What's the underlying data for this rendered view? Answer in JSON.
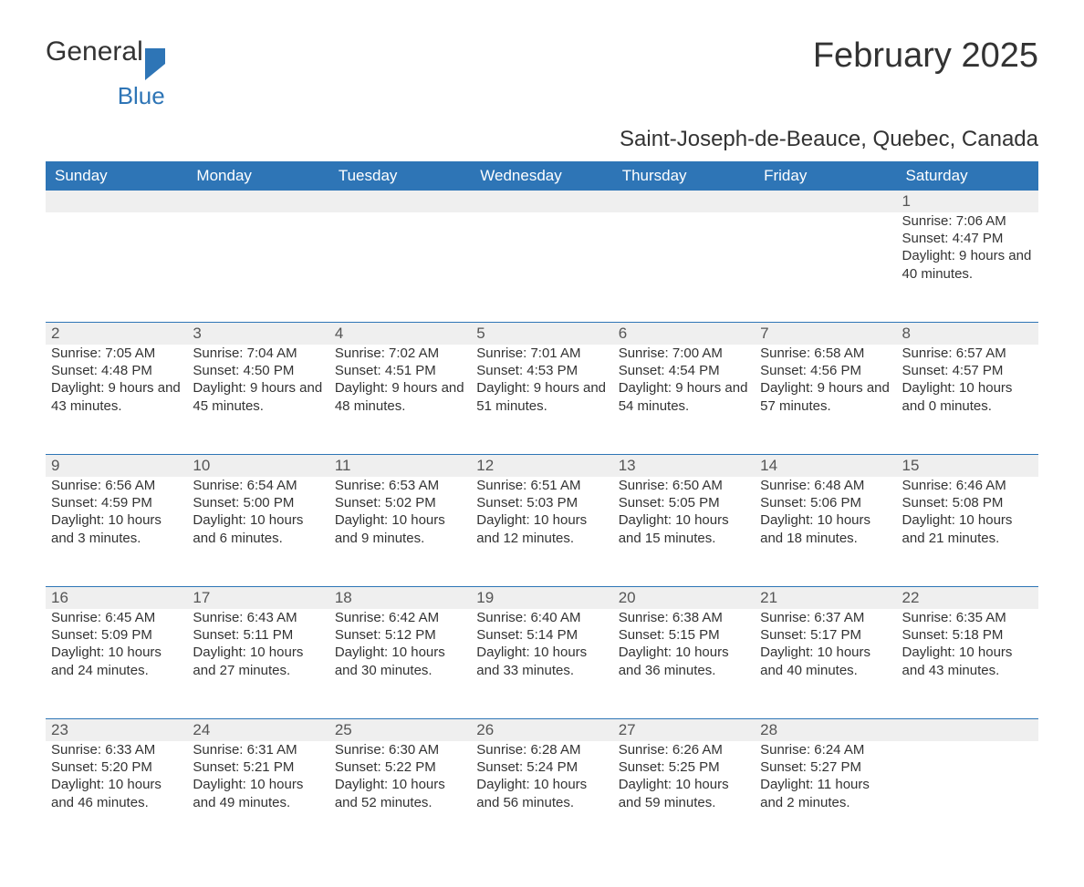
{
  "logo": {
    "text1": "General",
    "text2": "Blue"
  },
  "title": "February 2025",
  "location": "Saint-Joseph-de-Beauce, Quebec, Canada",
  "colors": {
    "header_bg": "#2e75b6",
    "header_text": "#ffffff",
    "daynum_bg": "#efefef",
    "text": "#333333",
    "rule": "#2e75b6"
  },
  "day_names": [
    "Sunday",
    "Monday",
    "Tuesday",
    "Wednesday",
    "Thursday",
    "Friday",
    "Saturday"
  ],
  "weeks": [
    [
      null,
      null,
      null,
      null,
      null,
      null,
      {
        "n": "1",
        "sunrise": "Sunrise: 7:06 AM",
        "sunset": "Sunset: 4:47 PM",
        "daylight": "Daylight: 9 hours and 40 minutes."
      }
    ],
    [
      {
        "n": "2",
        "sunrise": "Sunrise: 7:05 AM",
        "sunset": "Sunset: 4:48 PM",
        "daylight": "Daylight: 9 hours and 43 minutes."
      },
      {
        "n": "3",
        "sunrise": "Sunrise: 7:04 AM",
        "sunset": "Sunset: 4:50 PM",
        "daylight": "Daylight: 9 hours and 45 minutes."
      },
      {
        "n": "4",
        "sunrise": "Sunrise: 7:02 AM",
        "sunset": "Sunset: 4:51 PM",
        "daylight": "Daylight: 9 hours and 48 minutes."
      },
      {
        "n": "5",
        "sunrise": "Sunrise: 7:01 AM",
        "sunset": "Sunset: 4:53 PM",
        "daylight": "Daylight: 9 hours and 51 minutes."
      },
      {
        "n": "6",
        "sunrise": "Sunrise: 7:00 AM",
        "sunset": "Sunset: 4:54 PM",
        "daylight": "Daylight: 9 hours and 54 minutes."
      },
      {
        "n": "7",
        "sunrise": "Sunrise: 6:58 AM",
        "sunset": "Sunset: 4:56 PM",
        "daylight": "Daylight: 9 hours and 57 minutes."
      },
      {
        "n": "8",
        "sunrise": "Sunrise: 6:57 AM",
        "sunset": "Sunset: 4:57 PM",
        "daylight": "Daylight: 10 hours and 0 minutes."
      }
    ],
    [
      {
        "n": "9",
        "sunrise": "Sunrise: 6:56 AM",
        "sunset": "Sunset: 4:59 PM",
        "daylight": "Daylight: 10 hours and 3 minutes."
      },
      {
        "n": "10",
        "sunrise": "Sunrise: 6:54 AM",
        "sunset": "Sunset: 5:00 PM",
        "daylight": "Daylight: 10 hours and 6 minutes."
      },
      {
        "n": "11",
        "sunrise": "Sunrise: 6:53 AM",
        "sunset": "Sunset: 5:02 PM",
        "daylight": "Daylight: 10 hours and 9 minutes."
      },
      {
        "n": "12",
        "sunrise": "Sunrise: 6:51 AM",
        "sunset": "Sunset: 5:03 PM",
        "daylight": "Daylight: 10 hours and 12 minutes."
      },
      {
        "n": "13",
        "sunrise": "Sunrise: 6:50 AM",
        "sunset": "Sunset: 5:05 PM",
        "daylight": "Daylight: 10 hours and 15 minutes."
      },
      {
        "n": "14",
        "sunrise": "Sunrise: 6:48 AM",
        "sunset": "Sunset: 5:06 PM",
        "daylight": "Daylight: 10 hours and 18 minutes."
      },
      {
        "n": "15",
        "sunrise": "Sunrise: 6:46 AM",
        "sunset": "Sunset: 5:08 PM",
        "daylight": "Daylight: 10 hours and 21 minutes."
      }
    ],
    [
      {
        "n": "16",
        "sunrise": "Sunrise: 6:45 AM",
        "sunset": "Sunset: 5:09 PM",
        "daylight": "Daylight: 10 hours and 24 minutes."
      },
      {
        "n": "17",
        "sunrise": "Sunrise: 6:43 AM",
        "sunset": "Sunset: 5:11 PM",
        "daylight": "Daylight: 10 hours and 27 minutes."
      },
      {
        "n": "18",
        "sunrise": "Sunrise: 6:42 AM",
        "sunset": "Sunset: 5:12 PM",
        "daylight": "Daylight: 10 hours and 30 minutes."
      },
      {
        "n": "19",
        "sunrise": "Sunrise: 6:40 AM",
        "sunset": "Sunset: 5:14 PM",
        "daylight": "Daylight: 10 hours and 33 minutes."
      },
      {
        "n": "20",
        "sunrise": "Sunrise: 6:38 AM",
        "sunset": "Sunset: 5:15 PM",
        "daylight": "Daylight: 10 hours and 36 minutes."
      },
      {
        "n": "21",
        "sunrise": "Sunrise: 6:37 AM",
        "sunset": "Sunset: 5:17 PM",
        "daylight": "Daylight: 10 hours and 40 minutes."
      },
      {
        "n": "22",
        "sunrise": "Sunrise: 6:35 AM",
        "sunset": "Sunset: 5:18 PM",
        "daylight": "Daylight: 10 hours and 43 minutes."
      }
    ],
    [
      {
        "n": "23",
        "sunrise": "Sunrise: 6:33 AM",
        "sunset": "Sunset: 5:20 PM",
        "daylight": "Daylight: 10 hours and 46 minutes."
      },
      {
        "n": "24",
        "sunrise": "Sunrise: 6:31 AM",
        "sunset": "Sunset: 5:21 PM",
        "daylight": "Daylight: 10 hours and 49 minutes."
      },
      {
        "n": "25",
        "sunrise": "Sunrise: 6:30 AM",
        "sunset": "Sunset: 5:22 PM",
        "daylight": "Daylight: 10 hours and 52 minutes."
      },
      {
        "n": "26",
        "sunrise": "Sunrise: 6:28 AM",
        "sunset": "Sunset: 5:24 PM",
        "daylight": "Daylight: 10 hours and 56 minutes."
      },
      {
        "n": "27",
        "sunrise": "Sunrise: 6:26 AM",
        "sunset": "Sunset: 5:25 PM",
        "daylight": "Daylight: 10 hours and 59 minutes."
      },
      {
        "n": "28",
        "sunrise": "Sunrise: 6:24 AM",
        "sunset": "Sunset: 5:27 PM",
        "daylight": "Daylight: 11 hours and 2 minutes."
      },
      null
    ]
  ]
}
